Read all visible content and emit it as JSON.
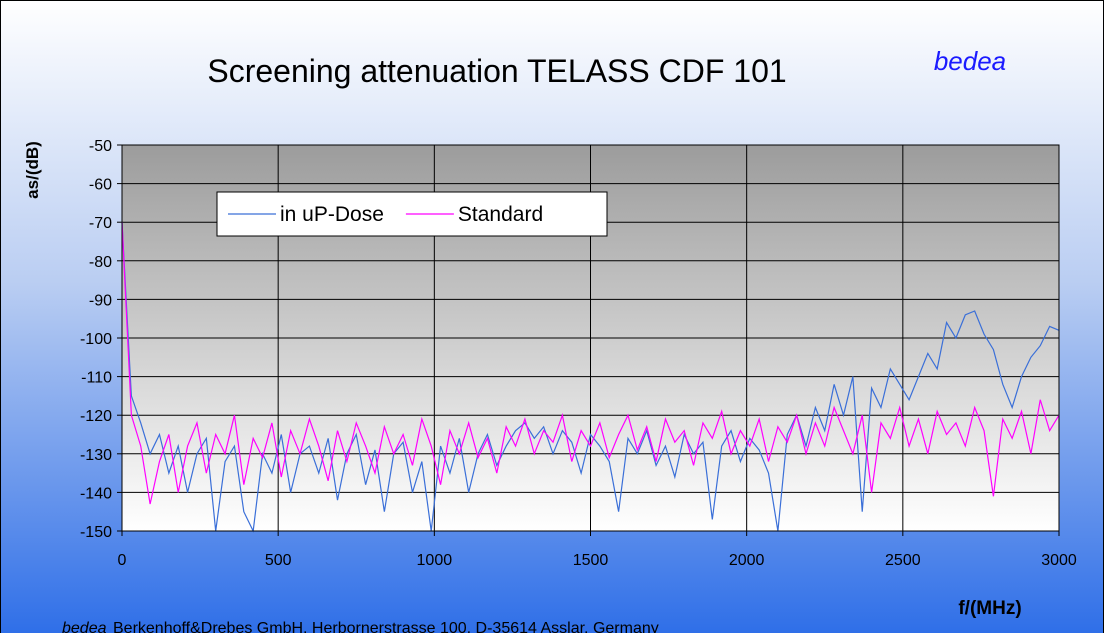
{
  "chart_data": {
    "type": "line",
    "title": "Screening attenuation TELASS CDF 101",
    "brand": "bedea",
    "ylabel": "as/(dB)",
    "xlabel": "f/(MHz)",
    "footer_brand": "bedea",
    "footer_text": "Berkenhoff&Drebes GmbH, Herbornerstrasse 100, D-35614 Asslar, Germany",
    "xlim": [
      0,
      3000
    ],
    "xticks": [
      0,
      500,
      1000,
      1500,
      2000,
      2500,
      3000
    ],
    "ylim": [
      -150,
      -50
    ],
    "yticks": [
      -50,
      -60,
      -70,
      -80,
      -90,
      -100,
      -110,
      -120,
      -130,
      -140,
      -150
    ],
    "grid": true,
    "legend": "top-left",
    "x": [
      0,
      30,
      60,
      90,
      120,
      150,
      180,
      210,
      240,
      270,
      300,
      330,
      360,
      390,
      420,
      450,
      480,
      510,
      540,
      570,
      600,
      630,
      660,
      690,
      720,
      750,
      780,
      810,
      840,
      870,
      900,
      930,
      960,
      990,
      1020,
      1050,
      1080,
      1110,
      1140,
      1170,
      1200,
      1230,
      1260,
      1290,
      1320,
      1350,
      1380,
      1410,
      1440,
      1470,
      1500,
      1530,
      1560,
      1590,
      1620,
      1650,
      1680,
      1710,
      1740,
      1770,
      1800,
      1830,
      1860,
      1890,
      1920,
      1950,
      1980,
      2010,
      2040,
      2070,
      2100,
      2130,
      2160,
      2190,
      2220,
      2250,
      2280,
      2310,
      2340,
      2370,
      2400,
      2430,
      2460,
      2490,
      2520,
      2550,
      2580,
      2610,
      2640,
      2670,
      2700,
      2730,
      2760,
      2790,
      2820,
      2850,
      2880,
      2910,
      2940,
      2970,
      3000
    ],
    "series": [
      {
        "name": "in uP-Dose",
        "color": "#3a6fd8",
        "values": [
          -70,
          -115,
          -122,
          -130,
          -125,
          -135,
          -128,
          -140,
          -130,
          -126,
          -150,
          -132,
          -128,
          -145,
          -150,
          -130,
          -135,
          -125,
          -140,
          -130,
          -128,
          -135,
          -126,
          -142,
          -130,
          -125,
          -138,
          -129,
          -145,
          -130,
          -127,
          -140,
          -132,
          -150,
          -128,
          -135,
          -126,
          -140,
          -130,
          -125,
          -133,
          -128,
          -124,
          -122,
          -126,
          -123,
          -130,
          -124,
          -127,
          -135,
          -125,
          -128,
          -132,
          -145,
          -126,
          -130,
          -124,
          -133,
          -128,
          -136,
          -125,
          -130,
          -127,
          -147,
          -128,
          -124,
          -132,
          -126,
          -129,
          -135,
          -150,
          -125,
          -120,
          -128,
          -118,
          -124,
          -112,
          -120,
          -110,
          -145,
          -113,
          -118,
          -108,
          -112,
          -116,
          -110,
          -104,
          -108,
          -96,
          -100,
          -94,
          -93,
          -99,
          -103,
          -112,
          -118,
          -110,
          -105,
          -102,
          -97,
          -98
        ]
      },
      {
        "name": "Standard",
        "color": "#ff00ff",
        "values": [
          -70,
          -120,
          -128,
          -143,
          -132,
          -125,
          -140,
          -128,
          -122,
          -135,
          -125,
          -130,
          -120,
          -138,
          -126,
          -131,
          -122,
          -136,
          -124,
          -130,
          -121,
          -128,
          -137,
          -124,
          -132,
          -122,
          -128,
          -135,
          -123,
          -130,
          -125,
          -133,
          -121,
          -128,
          -138,
          -124,
          -130,
          -122,
          -131,
          -126,
          -135,
          -123,
          -128,
          -121,
          -130,
          -124,
          -127,
          -120,
          -132,
          -124,
          -128,
          -122,
          -131,
          -125,
          -120,
          -129,
          -123,
          -132,
          -121,
          -127,
          -124,
          -133,
          -122,
          -126,
          -119,
          -130,
          -124,
          -128,
          -121,
          -132,
          -123,
          -127,
          -120,
          -130,
          -122,
          -128,
          -118,
          -124,
          -130,
          -120,
          -140,
          -122,
          -126,
          -118,
          -128,
          -121,
          -130,
          -119,
          -125,
          -122,
          -128,
          -118,
          -124,
          -141,
          -121,
          -126,
          -119,
          -130,
          -116,
          -124,
          -120
        ]
      }
    ]
  }
}
